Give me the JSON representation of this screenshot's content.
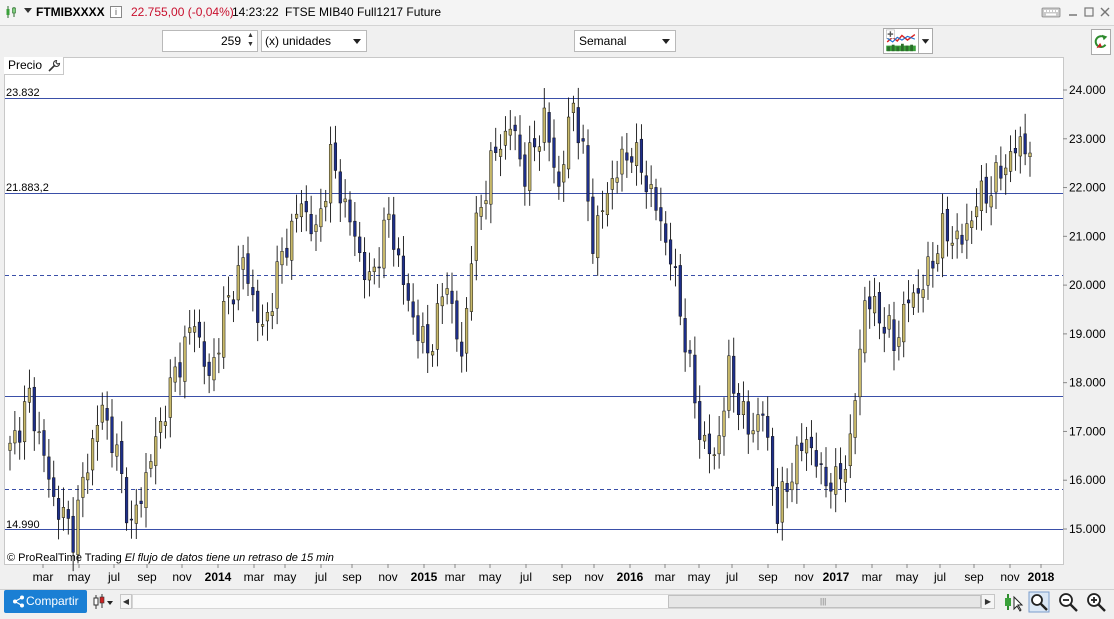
{
  "titlebar": {
    "symbol": "FTMIBXXXX",
    "info_icon_text": "i",
    "price": "22.755,00 (-0,04%)",
    "time": "14:23:22",
    "instrument": "FTSE MIB40 Full1217 Future",
    "window_buttons": [
      "keyboard-icon",
      "minimize-icon",
      "maximize-icon",
      "close-icon"
    ]
  },
  "toolbar": {
    "units_value": "259",
    "units_label": "(x) unidades",
    "period": "Semanal"
  },
  "chart": {
    "panel_label": "Precio",
    "level_labels": [
      "23.832",
      "21.883,2",
      "14.990"
    ],
    "credits_prefix": "© ProRealTime Trading",
    "credits_delay": "El flujo de datos tiene un retraso de 15 min"
  },
  "chart_data": {
    "type": "candlestick",
    "ylim": [
      14600,
      24600
    ],
    "y_ticks": [
      "24.000",
      "23.000",
      "22.000",
      "21.000",
      "20.000",
      "19.000",
      "18.000",
      "17.000",
      "16.000",
      "15.000"
    ],
    "y_tick_values": [
      24000,
      23000,
      22000,
      21000,
      20000,
      19000,
      18000,
      17000,
      16000,
      15000
    ],
    "x_ticks": [
      "mar",
      "may",
      "jul",
      "sep",
      "nov",
      "2014",
      "mar",
      "may",
      "jul",
      "sep",
      "nov",
      "2015",
      "mar",
      "may",
      "jul",
      "sep",
      "nov",
      "2016",
      "mar",
      "may",
      "jul",
      "sep",
      "nov",
      "2017",
      "mar",
      "may",
      "jul",
      "sep",
      "nov",
      "2018"
    ],
    "x_tick_bold": [
      false,
      false,
      false,
      false,
      false,
      true,
      false,
      false,
      false,
      false,
      false,
      true,
      false,
      false,
      false,
      false,
      false,
      true,
      false,
      false,
      false,
      false,
      false,
      true,
      false,
      false,
      false,
      false,
      false,
      true
    ],
    "horizontal_lines": [
      {
        "value": 23832,
        "style": "solid"
      },
      {
        "value": 21883.2,
        "style": "solid"
      },
      {
        "value": 20200,
        "style": "dashed"
      },
      {
        "value": 17730,
        "style": "solid"
      },
      {
        "value": 15830,
        "style": "dashed"
      },
      {
        "value": 14990,
        "style": "solid"
      }
    ],
    "bull_color": "#c8b96a",
    "bear_color": "#1e2f8a",
    "line_color": "#3a4fa8",
    "anchors": [
      [
        0,
        16600
      ],
      [
        4,
        17700
      ],
      [
        6,
        16900
      ],
      [
        9,
        15600
      ],
      [
        13,
        14900
      ],
      [
        16,
        16400
      ],
      [
        19,
        17500
      ],
      [
        22,
        16500
      ],
      [
        25,
        15000
      ],
      [
        30,
        16800
      ],
      [
        34,
        18200
      ],
      [
        38,
        19300
      ],
      [
        41,
        18000
      ],
      [
        44,
        19400
      ],
      [
        48,
        20500
      ],
      [
        52,
        19000
      ],
      [
        56,
        20600
      ],
      [
        60,
        21700
      ],
      [
        63,
        21000
      ],
      [
        66,
        22600
      ],
      [
        70,
        21300
      ],
      [
        74,
        20000
      ],
      [
        78,
        21400
      ],
      [
        82,
        19600
      ],
      [
        86,
        18600
      ],
      [
        90,
        20100
      ],
      [
        93,
        18400
      ],
      [
        95,
        20700
      ],
      [
        99,
        22500
      ],
      [
        103,
        23300
      ],
      [
        106,
        22300
      ],
      [
        110,
        23400
      ],
      [
        113,
        22000
      ],
      [
        116,
        23800
      ],
      [
        118,
        22600
      ],
      [
        120,
        20900
      ],
      [
        124,
        22200
      ],
      [
        128,
        22800
      ],
      [
        132,
        21900
      ],
      [
        136,
        20600
      ],
      [
        139,
        18900
      ],
      [
        142,
        17000
      ],
      [
        145,
        16400
      ],
      [
        148,
        18200
      ],
      [
        152,
        17000
      ],
      [
        155,
        17400
      ],
      [
        158,
        15300
      ],
      [
        161,
        16200
      ],
      [
        164,
        16900
      ],
      [
        167,
        16100
      ],
      [
        170,
        15900
      ],
      [
        173,
        16700
      ],
      [
        176,
        19700
      ],
      [
        179,
        19400
      ],
      [
        182,
        18800
      ],
      [
        185,
        19700
      ],
      [
        188,
        20000
      ],
      [
        192,
        21100
      ],
      [
        196,
        20900
      ],
      [
        199,
        21700
      ],
      [
        202,
        22000
      ],
      [
        205,
        22500
      ],
      [
        208,
        22900
      ],
      [
        210,
        22800
      ]
    ]
  },
  "bottombar": {
    "share_label": "Compartir"
  }
}
